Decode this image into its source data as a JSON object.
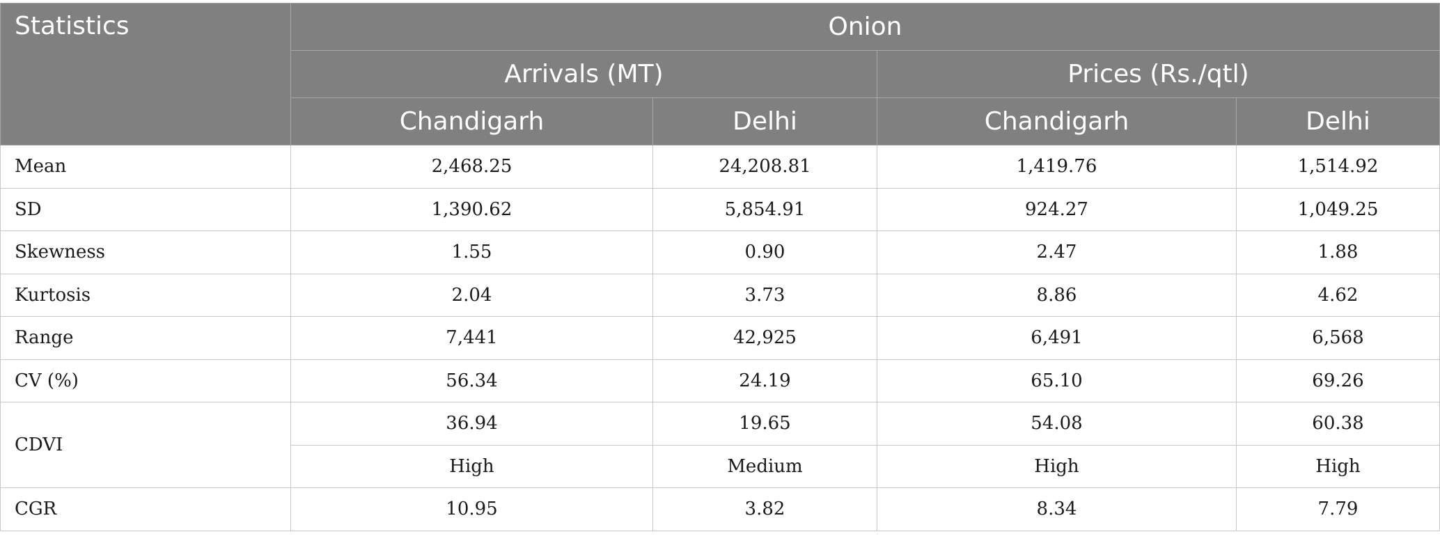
{
  "table": {
    "corner_header": "Statistics",
    "group_header": "Onion",
    "subgroups": [
      {
        "label": "Arrivals (MT)"
      },
      {
        "label": "Prices (Rs./qtl)"
      }
    ],
    "columns": [
      "Chandigarh",
      "Delhi",
      "Chandigarh",
      "Delhi"
    ],
    "rows": [
      {
        "label": "Mean",
        "values": [
          "2,468.25",
          "24,208.81",
          "1,419.76",
          "1,514.92"
        ]
      },
      {
        "label": "SD",
        "values": [
          "1,390.62",
          "5,854.91",
          "924.27",
          "1,049.25"
        ]
      },
      {
        "label": "Skewness",
        "values": [
          "1.55",
          "0.90",
          "2.47",
          "1.88"
        ]
      },
      {
        "label": "Kurtosis",
        "values": [
          "2.04",
          "3.73",
          "8.86",
          "4.62"
        ]
      },
      {
        "label": "Range",
        "values": [
          "7,441",
          "42,925",
          "6,491",
          "6,568"
        ]
      },
      {
        "label": "CV (%)",
        "values": [
          "56.34",
          "24.19",
          "65.10",
          "69.26"
        ]
      },
      {
        "label": "CDVI",
        "values": [
          "36.94",
          "19.65",
          "54.08",
          "60.38"
        ],
        "classes": [
          "High",
          "Medium",
          "High",
          "High"
        ]
      },
      {
        "label": "CGR",
        "values": [
          "10.95",
          "3.82",
          "8.34",
          "7.79"
        ]
      }
    ]
  }
}
